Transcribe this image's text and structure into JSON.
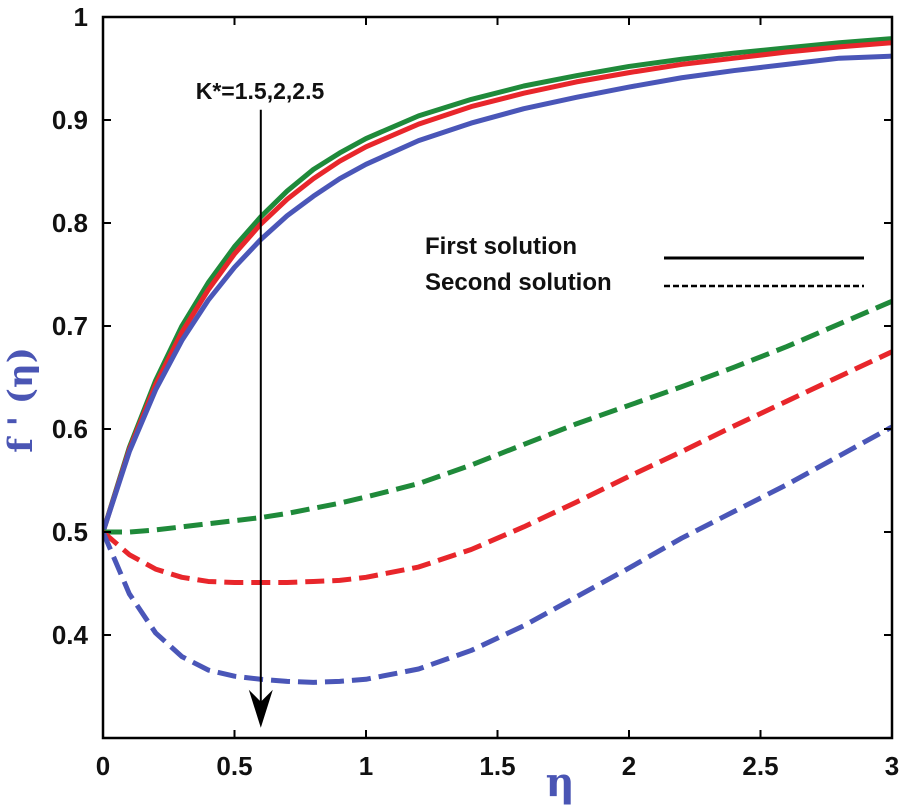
{
  "chart_data": {
    "type": "line",
    "title": "",
    "xlabel": "η",
    "ylabel": "f ' (η)",
    "xlim": [
      0,
      3
    ],
    "ylim": [
      0.3,
      1.0
    ],
    "xticks": [
      0,
      0.5,
      1,
      1.5,
      2,
      2.5,
      3
    ],
    "xtick_labels": [
      "0",
      "0.5",
      "1",
      "1.5",
      "2",
      "2.5",
      "3"
    ],
    "yticks": [
      0.4,
      0.5,
      0.6,
      0.7,
      0.8,
      0.9,
      1.0
    ],
    "ytick_labels": [
      "0.4",
      "0.5",
      "0.6",
      "0.7",
      "0.8",
      "0.9",
      "1"
    ],
    "grid": false,
    "legend": {
      "position": "center-right",
      "entries": [
        {
          "label": "First solution",
          "style": "solid"
        },
        {
          "label": "Second solution",
          "style": "dashed"
        }
      ]
    },
    "annotation": {
      "text": "K*=1.5,2,2.5",
      "arrow_x": 0.6,
      "arrow_from_y": 0.91,
      "arrow_to_y": 0.31
    },
    "x": [
      0,
      0.1,
      0.2,
      0.3,
      0.4,
      0.5,
      0.6,
      0.7,
      0.8,
      0.9,
      1.0,
      1.2,
      1.4,
      1.6,
      1.8,
      2.0,
      2.2,
      2.4,
      2.6,
      2.8,
      3.0
    ],
    "series": [
      {
        "name": "First solution, K*=1.5",
        "style": "solid",
        "color": "#1f8a3a",
        "values": [
          0.5,
          0.582,
          0.647,
          0.7,
          0.742,
          0.777,
          0.806,
          0.831,
          0.852,
          0.868,
          0.882,
          0.904,
          0.92,
          0.933,
          0.943,
          0.952,
          0.959,
          0.965,
          0.97,
          0.975,
          0.979
        ]
      },
      {
        "name": "First solution, K*=2",
        "style": "solid",
        "color": "#e8262b",
        "values": [
          0.5,
          0.58,
          0.643,
          0.694,
          0.735,
          0.77,
          0.799,
          0.823,
          0.843,
          0.86,
          0.874,
          0.896,
          0.913,
          0.926,
          0.937,
          0.946,
          0.954,
          0.96,
          0.966,
          0.971,
          0.975
        ]
      },
      {
        "name": "First solution, K*=2.5",
        "style": "solid",
        "color": "#4a56b8",
        "values": [
          0.5,
          0.578,
          0.638,
          0.686,
          0.725,
          0.757,
          0.784,
          0.807,
          0.826,
          0.843,
          0.857,
          0.88,
          0.897,
          0.911,
          0.922,
          0.932,
          0.941,
          0.948,
          0.954,
          0.96,
          0.962
        ]
      },
      {
        "name": "Second solution, K*=1.5",
        "style": "dashed",
        "color": "#1f8a3a",
        "values": [
          0.5,
          0.5,
          0.502,
          0.505,
          0.508,
          0.511,
          0.514,
          0.518,
          0.523,
          0.528,
          0.534,
          0.547,
          0.565,
          0.585,
          0.605,
          0.623,
          0.641,
          0.66,
          0.68,
          0.702,
          0.724
        ]
      },
      {
        "name": "Second solution, K*=2",
        "style": "dashed",
        "color": "#e8262b",
        "values": [
          0.5,
          0.478,
          0.464,
          0.456,
          0.452,
          0.451,
          0.451,
          0.451,
          0.452,
          0.453,
          0.456,
          0.466,
          0.483,
          0.505,
          0.529,
          0.554,
          0.578,
          0.603,
          0.627,
          0.651,
          0.675
        ]
      },
      {
        "name": "Second solution, K*=2.5",
        "style": "dashed",
        "color": "#4a56b8",
        "values": [
          0.5,
          0.44,
          0.402,
          0.379,
          0.366,
          0.36,
          0.357,
          0.355,
          0.354,
          0.355,
          0.357,
          0.367,
          0.385,
          0.409,
          0.437,
          0.465,
          0.494,
          0.52,
          0.546,
          0.574,
          0.602
        ]
      }
    ]
  }
}
